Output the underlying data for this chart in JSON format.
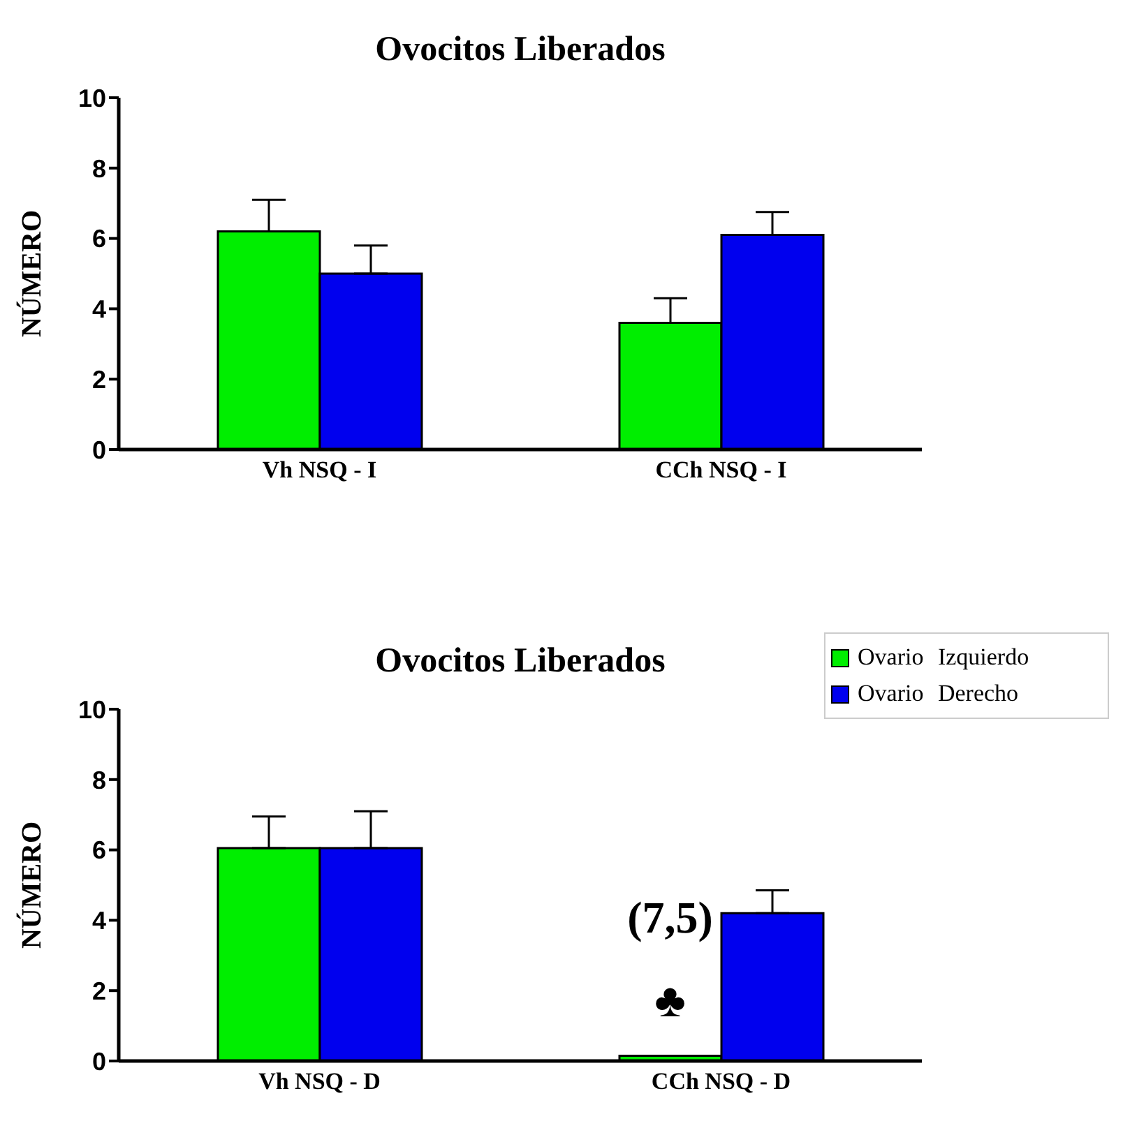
{
  "chart_data": [
    {
      "type": "bar",
      "title": "Ovocitos Liberados",
      "ylabel": "NÚMERO",
      "categories": [
        "Vh NSQ - I",
        "CCh NSQ - I"
      ],
      "ylim": [
        0,
        10
      ],
      "yticks": [
        0,
        2,
        4,
        6,
        8,
        10
      ],
      "series": [
        {
          "color": "#00ee00",
          "values": [
            6.2,
            3.6
          ],
          "errors": [
            0.9,
            0.7
          ]
        },
        {
          "color": "#0000ee",
          "values": [
            5.0,
            6.1
          ],
          "errors": [
            0.8,
            0.65
          ]
        }
      ]
    },
    {
      "type": "bar",
      "title": "Ovocitos Liberados",
      "ylabel": "NÚMERO",
      "categories": [
        "Vh NSQ - D",
        "CCh NSQ - D"
      ],
      "ylim": [
        0,
        10
      ],
      "yticks": [
        0,
        2,
        4,
        6,
        8,
        10
      ],
      "legend": "top right",
      "series": [
        {
          "name": "Ovario Izquierdo",
          "color": "#00ee00",
          "values": [
            6.05,
            0.15
          ],
          "errors": [
            0.9,
            null
          ]
        },
        {
          "name": "Ovario Derecho",
          "color": "#0000ee",
          "values": [
            6.05,
            4.2
          ],
          "errors": [
            1.05,
            0.65
          ]
        }
      ],
      "annotations": [
        {
          "text": "(7,5)",
          "x": "CCh NSQ - D",
          "y": 0.15
        },
        {
          "text": "♣",
          "x": "CCh NSQ - D",
          "y": 0.15
        }
      ]
    }
  ]
}
